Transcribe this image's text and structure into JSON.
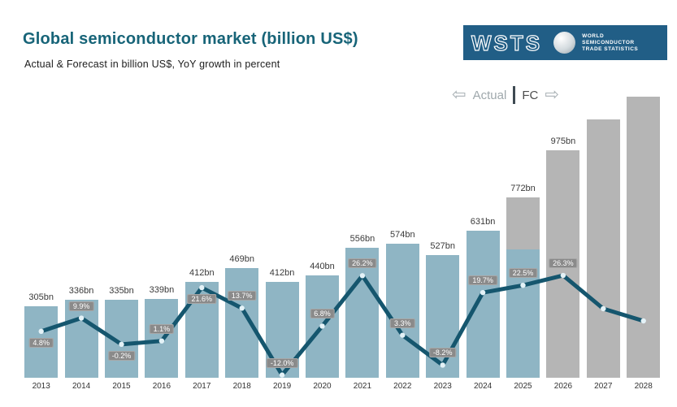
{
  "header": {
    "title": "Global semiconductor market (billion US$)",
    "subtitle": "Actual & Forecast in billion US$, YoY growth in percent"
  },
  "logo": {
    "brand": "WSTS",
    "caption_lines": [
      "WORLD",
      "SEMICONDUCTOR",
      "TRADE STATISTICS"
    ]
  },
  "legend": {
    "actual_label": "Actual",
    "fc_label": "FC"
  },
  "icons": {
    "arrow_left": "⇦",
    "arrow_right": "⇨"
  },
  "colors": {
    "title_text": "#176478",
    "logo_bg": "#215E86",
    "bar_actual": "#8FB5C4",
    "bar_forecast": "#B5B5B5",
    "line": "#15566E",
    "marker_fill": "#E4F2F7",
    "badge_bg": "#8A8A8A",
    "badge_text": "#FFFFFF",
    "legend_actual": "#9FA8AC",
    "legend_fc": "#4D4D4D"
  },
  "chart_data": {
    "type": "bar",
    "subtype": "bar-line-combo",
    "title": "Global semiconductor market (billion US$)",
    "xlabel": "",
    "ylabel": "",
    "grid": false,
    "value_unit": "billion US$",
    "categories": [
      "2013",
      "2014",
      "2015",
      "2016",
      "2017",
      "2018",
      "2019",
      "2020",
      "2021",
      "2022",
      "2023",
      "2024",
      "2025",
      "2026",
      "2027",
      "2028"
    ],
    "bars": [
      {
        "year": "2013",
        "value": 305,
        "label": "305bn",
        "style": "actual"
      },
      {
        "year": "2014",
        "value": 336,
        "label": "336bn",
        "style": "actual"
      },
      {
        "year": "2015",
        "value": 335,
        "label": "335bn",
        "style": "actual"
      },
      {
        "year": "2016",
        "value": 339,
        "label": "339bn",
        "style": "actual"
      },
      {
        "year": "2017",
        "value": 412,
        "label": "412bn",
        "style": "actual"
      },
      {
        "year": "2018",
        "value": 469,
        "label": "469bn",
        "style": "actual"
      },
      {
        "year": "2019",
        "value": 412,
        "label": "412bn",
        "style": "actual"
      },
      {
        "year": "2020",
        "value": 440,
        "label": "440bn",
        "style": "actual"
      },
      {
        "year": "2021",
        "value": 556,
        "label": "556bn",
        "style": "actual"
      },
      {
        "year": "2022",
        "value": 574,
        "label": "574bn",
        "style": "actual"
      },
      {
        "year": "2023",
        "value": 527,
        "label": "527bn",
        "style": "actual"
      },
      {
        "year": "2024",
        "value": 631,
        "label": "631bn",
        "style": "actual"
      },
      {
        "year": "2025",
        "value": 772,
        "label": "772bn",
        "style": "split",
        "actual_part_est": 550
      },
      {
        "year": "2026",
        "value": 975,
        "label": "975bn",
        "style": "forecast"
      },
      {
        "year": "2027",
        "value": 1107,
        "label": "",
        "style": "forecast",
        "estimated": true
      },
      {
        "year": "2028",
        "value": 1205,
        "label": "",
        "style": "forecast",
        "estimated": true
      }
    ],
    "growth_line": [
      {
        "year": "2013",
        "pct": 4.8,
        "label": "4.8%",
        "badge": "below"
      },
      {
        "year": "2014",
        "pct": 9.9,
        "label": "9.9%",
        "badge": "above"
      },
      {
        "year": "2015",
        "pct": -0.2,
        "label": "-0.2%",
        "badge": "below"
      },
      {
        "year": "2016",
        "pct": 1.1,
        "label": "1.1%",
        "badge": "above"
      },
      {
        "year": "2017",
        "pct": 21.6,
        "label": "21.6%",
        "badge": "below"
      },
      {
        "year": "2018",
        "pct": 13.7,
        "label": "13.7%",
        "badge": "above"
      },
      {
        "year": "2019",
        "pct": -12.0,
        "label": "-12.0%",
        "badge": "above"
      },
      {
        "year": "2020",
        "pct": 6.8,
        "label": "6.8%",
        "badge": "above"
      },
      {
        "year": "2021",
        "pct": 26.2,
        "label": "26.2%",
        "badge": "above"
      },
      {
        "year": "2022",
        "pct": 3.3,
        "label": "3.3%",
        "badge": "above"
      },
      {
        "year": "2023",
        "pct": -8.2,
        "label": "-8.2%",
        "badge": "above"
      },
      {
        "year": "2024",
        "pct": 19.7,
        "label": "19.7%",
        "badge": "above"
      },
      {
        "year": "2025",
        "pct": 22.5,
        "label": "22.5%",
        "badge": "above"
      },
      {
        "year": "2026",
        "pct": 26.3,
        "label": "26.3%",
        "badge": "above"
      },
      {
        "year": "2027",
        "pct": 13.5,
        "label": "",
        "badge": "none",
        "estimated": true
      },
      {
        "year": "2028",
        "pct": 8.8,
        "label": "",
        "badge": "none",
        "estimated": true
      }
    ]
  }
}
